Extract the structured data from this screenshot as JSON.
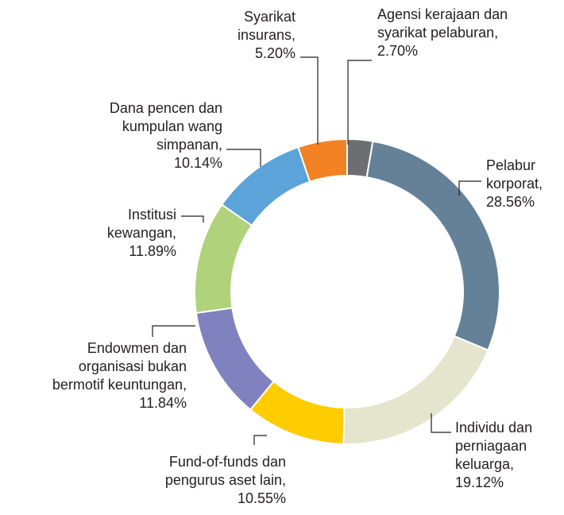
{
  "chart_data": {
    "type": "donut",
    "categories": [
      "Agensi kerajaan dan syarikat pelaburan,",
      "Pelabur korporat,",
      "Individu dan perniagaan keluarga,",
      "Fund-of-funds dan pengurus aset lain,",
      "Endowmen dan organisasi bukan bermotif keuntungan,",
      "Institusi kewangan,",
      "Dana pencen dan kumpulan wang simpanan,",
      "Syarikat insurans,"
    ],
    "values": [
      2.7,
      28.56,
      19.12,
      10.55,
      11.84,
      11.89,
      10.14,
      5.2
    ],
    "value_labels": [
      "2.70%",
      "28.56%",
      "19.12%",
      "10.55%",
      "11.84%",
      "11.89%",
      "10.14%",
      "5.20%"
    ],
    "colors": [
      "#6d6e71",
      "#648197",
      "#e5e4cc",
      "#ffcc00",
      "#7f82bf",
      "#afd27a",
      "#5ba3d9",
      "#f28223"
    ]
  }
}
